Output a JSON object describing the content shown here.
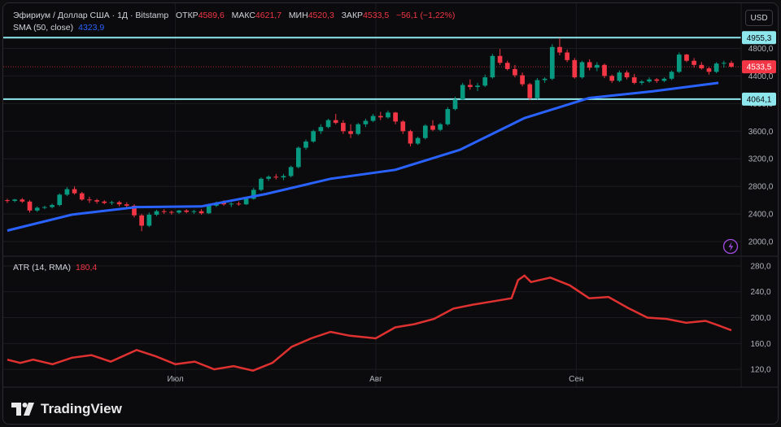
{
  "legend": {
    "symbol": "Эфириум / Доллар США · 1Д · Bitstamp",
    "open_label": "ОТКР",
    "open": "4589,6",
    "high_label": "МАКС",
    "high": "4621,7",
    "low_label": "МИН",
    "low": "4520,3",
    "close_label": "ЗАКР",
    "close": "4533,5",
    "change": "−56,1 (−1,22%)",
    "sma_label": "SMA (50, close)",
    "sma_value": "4323,9",
    "atr_label": "ATR (14, RMA)",
    "atr_value": "180,4"
  },
  "currency_button": "USD",
  "branding": "TradingView",
  "icons": [
    "lightning-icon",
    "tradingview-logo-icon"
  ],
  "colors": {
    "up": "#089981",
    "down": "#f23645",
    "sma": "#2962ff",
    "atr": "#e03131",
    "level": "#8fe7ee",
    "background": "#0b0b0d"
  },
  "chart_data": [
    {
      "type": "candlestick",
      "title": "Эфириум / Доллар США · 1Д · Bitstamp",
      "ylim": [
        1800,
        5100
      ],
      "y_ticks": [
        2000,
        2400,
        2800,
        3200,
        3600,
        4000,
        4400,
        4800
      ],
      "y_tick_labels": [
        "2000,0",
        "2400,0",
        "2800,0",
        "3200,0",
        "3600,0",
        "4000,0",
        "4400,0",
        "4800,0"
      ],
      "x_labels": [
        {
          "day": 46,
          "label": "Июл"
        },
        {
          "day": 77,
          "label": "Авг"
        },
        {
          "day": 108,
          "label": "Сен"
        }
      ],
      "day_range": [
        20,
        132
      ],
      "levels": [
        {
          "value": 4955.3,
          "label": "4955,3"
        },
        {
          "value": 4064.1,
          "label": "4064,1"
        }
      ],
      "last_price": {
        "value": 4533.5,
        "label": "4533,5"
      },
      "candles_ohlc": [
        [
          2600,
          2620,
          2560,
          2590
        ],
        [
          2590,
          2620,
          2570,
          2610
        ],
        [
          2610,
          2630,
          2560,
          2580
        ],
        [
          2580,
          2600,
          2420,
          2450
        ],
        [
          2450,
          2510,
          2430,
          2490
        ],
        [
          2490,
          2520,
          2470,
          2500
        ],
        [
          2500,
          2550,
          2480,
          2530
        ],
        [
          2530,
          2700,
          2510,
          2680
        ],
        [
          2680,
          2790,
          2660,
          2760
        ],
        [
          2760,
          2800,
          2680,
          2700
        ],
        [
          2700,
          2720,
          2590,
          2610
        ],
        [
          2610,
          2650,
          2560,
          2600
        ],
        [
          2600,
          2620,
          2550,
          2580
        ],
        [
          2580,
          2600,
          2540,
          2560
        ],
        [
          2560,
          2590,
          2530,
          2570
        ],
        [
          2570,
          2590,
          2510,
          2540
        ],
        [
          2540,
          2570,
          2480,
          2520
        ],
        [
          2520,
          2540,
          2350,
          2380
        ],
        [
          2380,
          2400,
          2150,
          2230
        ],
        [
          2230,
          2420,
          2210,
          2390
        ],
        [
          2390,
          2460,
          2370,
          2440
        ],
        [
          2440,
          2470,
          2400,
          2430
        ],
        [
          2430,
          2450,
          2390,
          2420
        ],
        [
          2420,
          2460,
          2400,
          2450
        ],
        [
          2450,
          2470,
          2410,
          2430
        ],
        [
          2430,
          2460,
          2400,
          2440
        ],
        [
          2440,
          2470,
          2390,
          2410
        ],
        [
          2410,
          2550,
          2400,
          2520
        ],
        [
          2520,
          2580,
          2500,
          2560
        ],
        [
          2560,
          2600,
          2520,
          2540
        ],
        [
          2540,
          2570,
          2500,
          2550
        ],
        [
          2550,
          2580,
          2520,
          2540
        ],
        [
          2540,
          2640,
          2530,
          2620
        ],
        [
          2620,
          2780,
          2610,
          2750
        ],
        [
          2750,
          2930,
          2730,
          2910
        ],
        [
          2910,
          2960,
          2880,
          2940
        ],
        [
          2940,
          2980,
          2900,
          2930
        ],
        [
          2930,
          2980,
          2890,
          2950
        ],
        [
          2950,
          3100,
          2930,
          3080
        ],
        [
          3080,
          3380,
          3060,
          3360
        ],
        [
          3360,
          3480,
          3330,
          3450
        ],
        [
          3450,
          3620,
          3430,
          3600
        ],
        [
          3600,
          3700,
          3560,
          3660
        ],
        [
          3660,
          3780,
          3640,
          3760
        ],
        [
          3760,
          3850,
          3700,
          3720
        ],
        [
          3720,
          3760,
          3560,
          3600
        ],
        [
          3600,
          3700,
          3500,
          3560
        ],
        [
          3560,
          3720,
          3540,
          3700
        ],
        [
          3700,
          3780,
          3660,
          3750
        ],
        [
          3750,
          3850,
          3730,
          3820
        ],
        [
          3820,
          3880,
          3760,
          3800
        ],
        [
          3800,
          3900,
          3780,
          3870
        ],
        [
          3870,
          3880,
          3700,
          3740
        ],
        [
          3740,
          3760,
          3560,
          3600
        ],
        [
          3600,
          3620,
          3380,
          3420
        ],
        [
          3420,
          3520,
          3400,
          3500
        ],
        [
          3500,
          3700,
          3480,
          3680
        ],
        [
          3680,
          3760,
          3600,
          3620
        ],
        [
          3620,
          3720,
          3600,
          3700
        ],
        [
          3700,
          3950,
          3680,
          3920
        ],
        [
          3920,
          4100,
          3900,
          4060
        ],
        [
          4060,
          4300,
          4050,
          4270
        ],
        [
          4270,
          4350,
          4200,
          4240
        ],
        [
          4240,
          4300,
          4180,
          4260
        ],
        [
          4260,
          4420,
          4240,
          4380
        ],
        [
          4380,
          4720,
          4360,
          4690
        ],
        [
          4690,
          4790,
          4560,
          4590
        ],
        [
          4590,
          4620,
          4480,
          4500
        ],
        [
          4500,
          4560,
          4380,
          4410
        ],
        [
          4410,
          4450,
          4250,
          4280
        ],
        [
          4280,
          4300,
          4050,
          4080
        ],
        [
          4080,
          4370,
          4060,
          4340
        ],
        [
          4340,
          4380,
          4300,
          4360
        ],
        [
          4360,
          4860,
          4340,
          4820
        ],
        [
          4820,
          4950,
          4700,
          4740
        ],
        [
          4740,
          4780,
          4600,
          4630
        ],
        [
          4630,
          4660,
          4360,
          4380
        ],
        [
          4380,
          4620,
          4360,
          4600
        ],
        [
          4600,
          4640,
          4480,
          4520
        ],
        [
          4520,
          4600,
          4470,
          4560
        ],
        [
          4560,
          4580,
          4370,
          4400
        ],
        [
          4400,
          4420,
          4300,
          4330
        ],
        [
          4330,
          4480,
          4310,
          4450
        ],
        [
          4450,
          4480,
          4350,
          4380
        ],
        [
          4380,
          4430,
          4280,
          4300
        ],
        [
          4300,
          4340,
          4270,
          4320
        ],
        [
          4320,
          4380,
          4300,
          4350
        ],
        [
          4350,
          4370,
          4300,
          4330
        ],
        [
          4330,
          4380,
          4310,
          4360
        ],
        [
          4360,
          4480,
          4340,
          4460
        ],
        [
          4460,
          4740,
          4440,
          4710
        ],
        [
          4710,
          4720,
          4600,
          4620
        ],
        [
          4620,
          4660,
          4520,
          4560
        ],
        [
          4560,
          4600,
          4490,
          4510
        ],
        [
          4510,
          4530,
          4420,
          4460
        ],
        [
          4460,
          4600,
          4440,
          4580
        ],
        [
          4580,
          4620,
          4520,
          4590
        ],
        [
          4589.6,
          4621.7,
          4520.3,
          4533.5
        ]
      ],
      "series": [
        {
          "name": "SMA (50, close)",
          "days": [
            20,
            30,
            40,
            50,
            60,
            70,
            80,
            90,
            100,
            110,
            120,
            130
          ],
          "values": [
            2160,
            2390,
            2500,
            2510,
            2690,
            2910,
            3040,
            3330,
            3790,
            4080,
            4180,
            4300
          ]
        }
      ]
    },
    {
      "type": "line",
      "title": "ATR (14, RMA)",
      "ylim": [
        95,
        290
      ],
      "y_ticks": [
        120,
        160,
        200,
        240,
        280
      ],
      "y_tick_labels": [
        "120,0",
        "160,0",
        "200,0",
        "240,0",
        "280,0"
      ],
      "series": [
        {
          "name": "ATR (14, RMA)",
          "days": [
            20,
            22,
            24,
            27,
            30,
            33,
            36,
            40,
            43,
            46,
            49,
            52,
            55,
            58,
            61,
            64,
            67,
            70,
            73,
            77,
            80,
            83,
            86,
            89,
            92,
            95,
            98,
            99,
            100,
            101,
            104,
            107,
            110,
            113,
            116,
            119,
            122,
            125,
            128,
            130,
            132
          ],
          "values": [
            135,
            130,
            135,
            128,
            138,
            142,
            132,
            150,
            140,
            128,
            132,
            120,
            125,
            118,
            130,
            155,
            168,
            178,
            172,
            168,
            185,
            190,
            198,
            214,
            220,
            225,
            230,
            258,
            265,
            255,
            262,
            250,
            230,
            232,
            215,
            200,
            198,
            192,
            195,
            188,
            180.4
          ]
        }
      ]
    }
  ]
}
